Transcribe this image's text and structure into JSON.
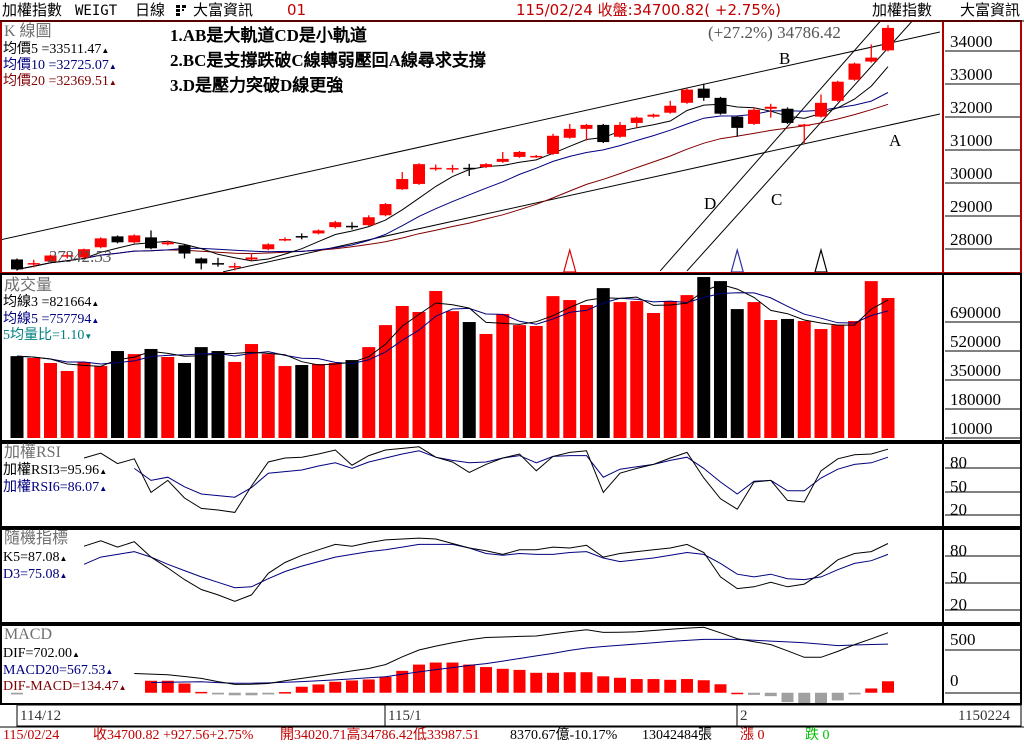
{
  "header": {
    "index_name": "加權指數",
    "code": "WEIGT",
    "period": "日線",
    "grid_icon": "grid-icon",
    "vendor": "大富資訊",
    "page_no": "01",
    "quote": "115/02/24 收盤:34700.82( +2.75%)",
    "right_index_name": "加權指數",
    "right_vendor": "大富資訊"
  },
  "kline": {
    "title": "K 線圖",
    "ma5": "均價5 =33511.47",
    "ma10": "均價10 =32725.07",
    "ma20": "均價20 =32369.51",
    "notes": [
      "1.AB是大軌道CD是小軌道",
      "2.BC是支撐跌破C線轉弱壓回A線尋求支撐",
      "3.D是壓力突破D線更強"
    ],
    "high_label": "(+27.2%) 34786.42",
    "low_label": "27342.53",
    "line_labels": {
      "A": "A",
      "B": "B",
      "C": "C",
      "D": "D"
    },
    "axis_ticks": [
      "34000",
      "33000",
      "32000",
      "31000",
      "30000",
      "29000",
      "28000"
    ]
  },
  "volume": {
    "title": "成交量",
    "ma3": "均線3 =821664",
    "ma5": "均線5 =757794",
    "ratio": "5均量比=1.10",
    "axis_ticks": [
      "690000",
      "520000",
      "350000",
      "180000",
      "10000"
    ]
  },
  "rsi": {
    "title": "加權RSI",
    "rsi3": "加權RSI3=95.96",
    "rsi6": "加權RSI6=86.07",
    "axis_ticks": [
      "80",
      "50",
      "20"
    ]
  },
  "kd": {
    "title": "隨機指標",
    "k": "K5=87.08",
    "d": "D3=75.08",
    "axis_ticks": [
      "80",
      "50",
      "20"
    ]
  },
  "macd": {
    "title": "MACD",
    "dif": "DIF=702.00",
    "macd": "MACD20=567.53",
    "osc": "DIF-MACD=134.47",
    "axis_ticks": [
      "500",
      "0"
    ]
  },
  "date_axis": {
    "labels": [
      "114/12",
      "115/1",
      "2"
    ],
    "last_date": "1150224"
  },
  "status": {
    "date": "115/02/24",
    "close": "收34700.82 +927.56+2.75%",
    "ohl": "開34020.71高34786.42低33987.51",
    "amount": "8370.67億-10.17%",
    "shares": "13042484張",
    "up": "漲 0",
    "down": "跌 0"
  },
  "colors": {
    "up": "#ff0000",
    "down": "#000000",
    "ma5": "#000000",
    "ma10": "#000080",
    "ma20": "#800000",
    "panel_border": "#b00000",
    "ratio": "#008080",
    "osc_neg": "#a0a0a0",
    "up_count": "#c00000",
    "down_count": "#00c000"
  },
  "chart_data": [
    {
      "type": "candlestick",
      "name": "K 線圖",
      "ylim": [
        27300,
        34880
      ],
      "ohlc": [
        [
          27680,
          27710,
          27342.53,
          27380
        ],
        [
          27550,
          27670,
          27440,
          27570
        ],
        [
          27620,
          27830,
          27590,
          27800
        ],
        [
          27790,
          27910,
          27710,
          27810
        ],
        [
          27740,
          28010,
          27710,
          27990
        ],
        [
          28050,
          28350,
          28020,
          28320
        ],
        [
          28380,
          28410,
          28170,
          28200
        ],
        [
          28200,
          28440,
          28170,
          28410
        ],
        [
          28350,
          28560,
          27990,
          28020
        ],
        [
          28140,
          28250,
          28110,
          28200
        ],
        [
          28110,
          28140,
          27710,
          27860
        ],
        [
          27710,
          27740,
          27380,
          27560
        ],
        [
          27570,
          27730,
          27460,
          27550
        ],
        [
          27460,
          27580,
          27350,
          27480
        ],
        [
          27680,
          27860,
          27650,
          27740
        ],
        [
          27990,
          28170,
          27960,
          28140
        ],
        [
          28280,
          28350,
          28230,
          28300
        ],
        [
          28390,
          28470,
          28290,
          28370
        ],
        [
          28470,
          28590,
          28440,
          28560
        ],
        [
          28660,
          28850,
          28620,
          28810
        ],
        [
          28700,
          28810,
          28590,
          28680
        ],
        [
          28720,
          29020,
          28690,
          28960
        ],
        [
          29020,
          29390,
          28990,
          29360
        ],
        [
          29810,
          30330,
          29790,
          30120
        ],
        [
          29970,
          30600,
          29940,
          30570
        ],
        [
          30440,
          30560,
          30370,
          30460
        ],
        [
          30430,
          30550,
          30310,
          30450
        ],
        [
          30460,
          30580,
          30210,
          30440
        ],
        [
          30480,
          30600,
          30450,
          30570
        ],
        [
          30640,
          30940,
          30610,
          30730
        ],
        [
          30790,
          30970,
          30760,
          30940
        ],
        [
          30790,
          30850,
          30760,
          30820
        ],
        [
          30880,
          31490,
          30850,
          31430
        ],
        [
          31370,
          31790,
          31340,
          31640
        ],
        [
          31640,
          31790,
          31290,
          31760
        ],
        [
          31760,
          31790,
          31210,
          31240
        ],
        [
          31400,
          31850,
          31370,
          31760
        ],
        [
          31820,
          32010,
          31670,
          31980
        ],
        [
          32010,
          32100,
          31980,
          32070
        ],
        [
          32130,
          32490,
          32100,
          32340
        ],
        [
          32430,
          32860,
          32400,
          32830
        ],
        [
          32860,
          33010,
          32490,
          32580
        ],
        [
          32580,
          32610,
          32070,
          32100
        ],
        [
          32010,
          32040,
          31400,
          31670
        ],
        [
          31790,
          32290,
          31760,
          32220
        ],
        [
          32250,
          32400,
          31980,
          32310
        ],
        [
          32250,
          32290,
          31790,
          31820
        ],
        [
          31750,
          31790,
          31210,
          31770
        ],
        [
          32010,
          32680,
          31980,
          32430
        ],
        [
          32490,
          33100,
          32460,
          33070
        ],
        [
          33130,
          33650,
          33100,
          33620
        ],
        [
          33680,
          34200,
          33650,
          33800
        ],
        [
          34020.71,
          34786.42,
          33987.51,
          34700.82
        ]
      ],
      "moving_averages": [
        5,
        10,
        20
      ],
      "trendlines": {
        "A": [
          [
            12.3,
            27305
          ],
          [
            55.1,
            32091
          ]
        ],
        "B": [
          [
            -1.0,
            28273
          ],
          [
            55.1,
            34576
          ]
        ],
        "C": [
          [
            40.0,
            27333
          ],
          [
            53.5,
            34939
          ]
        ],
        "D": [
          [
            38.4,
            27333
          ],
          [
            51.6,
            34939
          ]
        ]
      },
      "markers": [
        {
          "index": 33,
          "color": "#e00000"
        },
        {
          "index": 43,
          "color": "#3030a0"
        },
        {
          "index": 48,
          "color": "#000000"
        }
      ]
    },
    {
      "type": "bar",
      "name": "成交量",
      "ylim": [
        10000,
        960000
      ],
      "values": [
        490000,
        479000,
        450000,
        403000,
        455000,
        432000,
        520000,
        502000,
        532000,
        485000,
        450000,
        543000,
        520000,
        456000,
        561000,
        502000,
        432000,
        438000,
        444000,
        450000,
        467000,
        543000,
        672000,
        784000,
        749000,
        872000,
        754000,
        690000,
        620000,
        737000,
        672000,
        667000,
        842000,
        819000,
        790000,
        889000,
        807000,
        813000,
        743000,
        813000,
        848000,
        954000,
        930000,
        766000,
        807000,
        702000,
        708000,
        696000,
        649000,
        672000,
        696000,
        930000,
        831000
      ],
      "moving_averages": [
        3,
        5
      ]
    },
    {
      "type": "line",
      "name": "加權RSI",
      "ylim": [
        0,
        102.5
      ],
      "series": [
        {
          "name": "加權RSI3",
          "values": [
            null,
            null,
            null,
            null,
            85,
            91,
            78,
            84,
            42,
            57,
            35,
            22,
            20,
            17,
            50,
            80,
            85,
            86,
            90,
            95,
            76,
            88,
            95,
            97,
            99,
            86,
            80,
            67,
            77,
            85,
            90,
            69,
            87,
            92,
            94,
            42,
            66,
            72,
            77,
            85,
            92,
            60,
            34,
            21,
            55,
            57,
            32,
            30,
            69,
            84,
            89,
            90,
            96
          ]
        },
        {
          "name": "加權RSI6",
          "values": [
            null,
            null,
            null,
            null,
            null,
            null,
            null,
            72,
            57,
            61,
            49,
            40,
            38,
            36,
            48,
            66,
            68,
            70,
            75,
            79,
            72,
            80,
            85,
            90,
            94,
            86,
            82,
            79,
            80,
            85,
            88,
            79,
            87,
            88,
            88,
            61,
            71,
            74,
            77,
            82,
            86,
            72,
            55,
            40,
            56,
            57,
            44,
            44,
            60,
            71,
            77,
            79,
            86
          ]
        }
      ]
    },
    {
      "type": "line",
      "name": "隨機指標",
      "ylim": [
        0,
        102
      ],
      "series": [
        {
          "name": "K5",
          "values": [
            null,
            null,
            null,
            null,
            84,
            90,
            83,
            89,
            72,
            60,
            47,
            36,
            30,
            23,
            30,
            54,
            66,
            74,
            80,
            86,
            84,
            88,
            91,
            92,
            93,
            92,
            87,
            82,
            79,
            75,
            80,
            80,
            83,
            82,
            85,
            72,
            76,
            78,
            80,
            82,
            86,
            77,
            50,
            37,
            39,
            44,
            39,
            42,
            54,
            69,
            76,
            78,
            87
          ]
        },
        {
          "name": "D3",
          "values": [
            null,
            null,
            null,
            null,
            64,
            72,
            75,
            78,
            72,
            64,
            57,
            50,
            44,
            38,
            39,
            48,
            56,
            62,
            67,
            72,
            75,
            78,
            80,
            83,
            86,
            86,
            86,
            82,
            76,
            74,
            76,
            75,
            75,
            77,
            78,
            71,
            67,
            69,
            71,
            74,
            77,
            75,
            65,
            53,
            50,
            53,
            48,
            47,
            50,
            58,
            65,
            68,
            75
          ]
        }
      ]
    },
    {
      "type": "line+bar",
      "name": "MACD",
      "ylim": [
        -120,
        780
      ],
      "series": [
        {
          "name": "DIF",
          "values": [
            null,
            null,
            null,
            null,
            null,
            null,
            null,
            225,
            218,
            210,
            190,
            167,
            130,
            97,
            100,
            108,
            140,
            167,
            195,
            225,
            255,
            283,
            329,
            420,
            500,
            545,
            585,
            620,
            645,
            652,
            658,
            663,
            690,
            715,
            737,
            705,
            708,
            712,
            727,
            742,
            756,
            765,
            700,
            631,
            597,
            563,
            490,
            414,
            414,
            483,
            563,
            630,
            702
          ]
        },
        {
          "name": "MACD20",
          "values": [
            null,
            null,
            null,
            null,
            null,
            null,
            null,
            null,
            120,
            123,
            126,
            128,
            118,
            110,
            112,
            115,
            122,
            130,
            140,
            150,
            162,
            175,
            186,
            215,
            244,
            270,
            294,
            320,
            340,
            370,
            400,
            430,
            460,
            495,
            523,
            540,
            555,
            570,
            585,
            600,
            612,
            623,
            623,
            623,
            613,
            603,
            594,
            584,
            568,
            551,
            558,
            564,
            568
          ]
        },
        {
          "name": "DIF-MACD",
          "values": [
            -20,
            null,
            null,
            null,
            null,
            null,
            null,
            null,
            140,
            140,
            108,
            10,
            -20,
            -30,
            -30,
            -20,
            8,
            70,
            97,
            128,
            143,
            155,
            186,
            256,
            329,
            353,
            353,
            329,
            300,
            280,
            267,
            233,
            233,
            240,
            240,
            192,
            175,
            160,
            160,
            151,
            160,
            146,
            99,
            0,
            -25,
            -40,
            -110,
            -140,
            -135,
            -90,
            -20,
            50,
            134
          ]
        }
      ]
    }
  ]
}
